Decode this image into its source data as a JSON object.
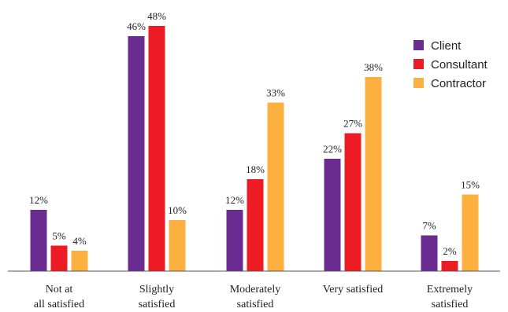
{
  "chart_data": {
    "type": "bar",
    "categories": [
      [
        "Not at",
        "all satisfied"
      ],
      [
        "Slightly",
        "satisfied"
      ],
      [
        "Moderately",
        "satisfied"
      ],
      [
        "Very satisfied"
      ],
      [
        "Extremely",
        "satisfied"
      ]
    ],
    "series": [
      {
        "name": "Client",
        "color": "#6a2c91",
        "values": [
          12,
          46,
          12,
          22,
          7
        ]
      },
      {
        "name": "Consultant",
        "color": "#ed1c24",
        "values": [
          5,
          48,
          18,
          27,
          2
        ]
      },
      {
        "name": "Contractor",
        "color": "#fbb040",
        "values": [
          4,
          10,
          33,
          38,
          15
        ]
      }
    ],
    "value_suffix": "%",
    "ylim": [
      0,
      50
    ],
    "grid": false,
    "legend_position": "top-right",
    "title": "",
    "xlabel": "",
    "ylabel": ""
  }
}
